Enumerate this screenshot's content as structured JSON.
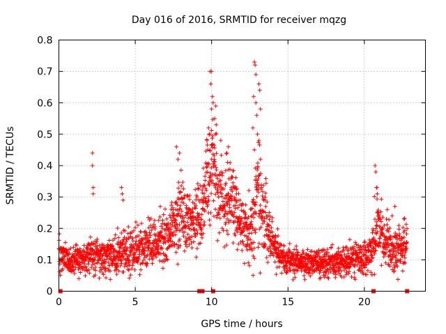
{
  "chart_data": {
    "type": "scatter",
    "title": "Day 016 of 2016, SRMTID for receiver mqzg",
    "xlabel": "GPS time / hours",
    "ylabel": "SRMTID / TECUs",
    "xlim": [
      0,
      24
    ],
    "ylim": [
      0,
      0.8
    ],
    "x_ticks": [
      0,
      5,
      10,
      15,
      20
    ],
    "x_tick_labels": [
      "0",
      "5",
      "10",
      "15",
      "20"
    ],
    "y_ticks": [
      0,
      0.1,
      0.2,
      0.3,
      0.4,
      0.5,
      0.6,
      0.7,
      0.8
    ],
    "y_tick_labels": [
      "0",
      "0.1",
      "0.2",
      "0.3",
      "0.4",
      "0.5",
      "0.6",
      "0.7",
      "0.8"
    ],
    "grid": true,
    "marker": "plus",
    "color": "#ff0000",
    "zero_markers_x": [
      0.1,
      9.2,
      9.4,
      10.1,
      20.6,
      22.8
    ],
    "envelope": {
      "x": [
        0,
        1,
        2,
        3,
        4,
        5,
        6,
        7,
        7.5,
        8,
        8.5,
        9,
        9.5,
        9.8,
        10,
        10.3,
        10.6,
        11,
        11.5,
        12,
        12.5,
        12.8,
        13,
        13.3,
        13.6,
        14,
        14.5,
        15,
        16,
        17,
        18,
        19,
        20,
        20.4,
        20.8,
        21,
        21.5,
        22,
        22.5,
        22.8
      ],
      "y": [
        0.11,
        0.1,
        0.11,
        0.11,
        0.12,
        0.13,
        0.15,
        0.17,
        0.21,
        0.24,
        0.22,
        0.22,
        0.28,
        0.35,
        0.4,
        0.36,
        0.28,
        0.3,
        0.27,
        0.19,
        0.19,
        0.24,
        0.3,
        0.26,
        0.2,
        0.15,
        0.11,
        0.1,
        0.09,
        0.09,
        0.09,
        0.1,
        0.1,
        0.12,
        0.2,
        0.19,
        0.16,
        0.13,
        0.14,
        0.15
      ],
      "spread": [
        0.035,
        0.035,
        0.04,
        0.04,
        0.045,
        0.045,
        0.05,
        0.06,
        0.07,
        0.08,
        0.07,
        0.07,
        0.09,
        0.12,
        0.14,
        0.12,
        0.09,
        0.09,
        0.08,
        0.06,
        0.07,
        0.1,
        0.12,
        0.1,
        0.07,
        0.05,
        0.035,
        0.03,
        0.03,
        0.03,
        0.03,
        0.035,
        0.04,
        0.05,
        0.08,
        0.07,
        0.06,
        0.05,
        0.05,
        0.05
      ]
    },
    "spikes": [
      {
        "x": 2.2,
        "y": 0.44
      },
      {
        "x": 2.2,
        "y": 0.4
      },
      {
        "x": 2.25,
        "y": 0.33
      },
      {
        "x": 2.25,
        "y": 0.31
      },
      {
        "x": 4.1,
        "y": 0.33
      },
      {
        "x": 4.15,
        "y": 0.31
      },
      {
        "x": 4.2,
        "y": 0.29
      },
      {
        "x": 7.7,
        "y": 0.46
      },
      {
        "x": 7.8,
        "y": 0.42
      },
      {
        "x": 7.9,
        "y": 0.44
      },
      {
        "x": 9.9,
        "y": 0.7
      },
      {
        "x": 10.0,
        "y": 0.7
      },
      {
        "x": 9.95,
        "y": 0.66
      },
      {
        "x": 10.05,
        "y": 0.62
      },
      {
        "x": 10.1,
        "y": 0.6
      },
      {
        "x": 10.0,
        "y": 0.58
      },
      {
        "x": 10.2,
        "y": 0.55
      },
      {
        "x": 10.3,
        "y": 0.53
      },
      {
        "x": 10.25,
        "y": 0.5
      },
      {
        "x": 9.8,
        "y": 0.52
      },
      {
        "x": 9.7,
        "y": 0.48
      },
      {
        "x": 10.6,
        "y": 0.48
      },
      {
        "x": 11.0,
        "y": 0.44
      },
      {
        "x": 11.1,
        "y": 0.46
      },
      {
        "x": 12.8,
        "y": 0.73
      },
      {
        "x": 12.85,
        "y": 0.72
      },
      {
        "x": 12.9,
        "y": 0.69
      },
      {
        "x": 13.1,
        "y": 0.66
      },
      {
        "x": 13.15,
        "y": 0.64
      },
      {
        "x": 13.2,
        "y": 0.58
      },
      {
        "x": 12.75,
        "y": 0.62
      },
      {
        "x": 12.9,
        "y": 0.6
      },
      {
        "x": 12.95,
        "y": 0.56
      },
      {
        "x": 13.0,
        "y": 0.5
      },
      {
        "x": 12.7,
        "y": 0.52
      },
      {
        "x": 13.1,
        "y": 0.48
      },
      {
        "x": 12.8,
        "y": 0.45
      },
      {
        "x": 13.2,
        "y": 0.42
      },
      {
        "x": 20.7,
        "y": 0.4
      },
      {
        "x": 20.75,
        "y": 0.38
      },
      {
        "x": 20.8,
        "y": 0.33
      },
      {
        "x": 20.85,
        "y": 0.31
      },
      {
        "x": 22.0,
        "y": 0.27
      },
      {
        "x": 22.6,
        "y": 0.23
      }
    ]
  }
}
